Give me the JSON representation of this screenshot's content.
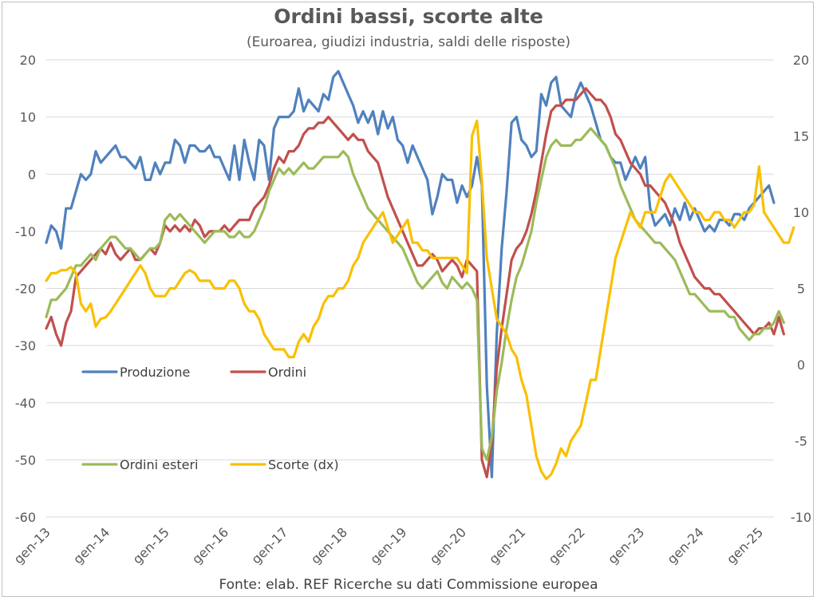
{
  "chart_data": {
    "type": "line",
    "title": "Ordini bassi, scorte alte",
    "subtitle": "(Euroarea, giudizi industria, saldi delle risposte)",
    "source": "Fonte: elab. REF Ricerche su dati Commissione europea",
    "x_tick_labels": [
      "gen-13",
      "gen-14",
      "gen-15",
      "gen-16",
      "gen-17",
      "gen-18",
      "gen-19",
      "gen-20",
      "gen-21",
      "gen-22",
      "gen-23",
      "gen-24",
      "gen-25"
    ],
    "x_start": "2013-01",
    "ylim_left": [
      -60,
      20
    ],
    "y_ticks_left": [
      "20",
      "10",
      "0",
      "-10",
      "-20",
      "-30",
      "-40",
      "-50",
      "-60"
    ],
    "ylim_right": [
      -10,
      20
    ],
    "y_ticks_right": [
      "20",
      "15",
      "10",
      "5",
      "0",
      "-5",
      "-10"
    ],
    "grid": true,
    "legend_position": "inside-left",
    "series": [
      {
        "name": "Produzione",
        "axis": "left",
        "color": "#4f81bd",
        "values": [
          -12,
          -9,
          -10,
          -13,
          -6,
          -6,
          -3,
          0,
          -1,
          0,
          4,
          2,
          3,
          4,
          5,
          3,
          3,
          2,
          1,
          3,
          -1,
          -1,
          2,
          0,
          2,
          2,
          6,
          5,
          2,
          5,
          5,
          4,
          4,
          5,
          3,
          3,
          1,
          -1,
          5,
          -1,
          6,
          2,
          -1,
          6,
          5,
          -1,
          8,
          10,
          10,
          10,
          11,
          15,
          11,
          13,
          12,
          11,
          14,
          13,
          17,
          18,
          16,
          14,
          12,
          9,
          11,
          9,
          11,
          7,
          11,
          8,
          10,
          6,
          5,
          2,
          5,
          3,
          1,
          -1,
          -7,
          -4,
          0,
          -1,
          -1,
          -5,
          -2,
          -4,
          -2,
          3,
          -2,
          -37,
          -53,
          -28,
          -13,
          -3,
          9,
          10,
          6,
          5,
          3,
          4,
          14,
          12,
          16,
          17,
          12,
          11,
          10,
          14,
          16,
          14,
          12,
          9,
          6,
          5,
          3,
          2,
          2,
          -1,
          1,
          3,
          1,
          3,
          -6,
          -9,
          -8,
          -7,
          -9,
          -6,
          -8,
          -5,
          -8,
          -6,
          -8,
          -10,
          -9,
          -10,
          -8,
          -8,
          -9,
          -7,
          -7,
          -8,
          -6,
          -5,
          -4,
          -3,
          -2,
          -5
        ],
        "note": "monthly, Jan 2013 - Jun 2025 (approx.)"
      },
      {
        "name": "Ordini",
        "axis": "left",
        "color": "#c0504d",
        "values": [
          -27,
          -25,
          -28,
          -30,
          -26,
          -24,
          -18,
          -17,
          -16,
          -15,
          -14,
          -13,
          -14,
          -12,
          -14,
          -15,
          -14,
          -13,
          -15,
          -15,
          -14,
          -13,
          -14,
          -12,
          -9,
          -10,
          -9,
          -10,
          -9,
          -10,
          -8,
          -9,
          -11,
          -10,
          -10,
          -10,
          -9,
          -10,
          -9,
          -8,
          -8,
          -8,
          -6,
          -5,
          -4,
          -2,
          1,
          3,
          2,
          4,
          4,
          5,
          7,
          8,
          8,
          9,
          9,
          10,
          9,
          8,
          7,
          6,
          7,
          6,
          6,
          4,
          3,
          2,
          -1,
          -4,
          -6,
          -8,
          -10,
          -12,
          -14,
          -16,
          -16,
          -15,
          -14,
          -15,
          -17,
          -16,
          -15,
          -16,
          -18,
          -15,
          -16,
          -17,
          -50,
          -53,
          -47,
          -34,
          -27,
          -21,
          -15,
          -13,
          -12,
          -10,
          -7,
          -3,
          2,
          7,
          11,
          12,
          12,
          13,
          13,
          13,
          14,
          15,
          14,
          13,
          13,
          12,
          10,
          7,
          6,
          4,
          2,
          1,
          0,
          -2,
          -2,
          -3,
          -4,
          -5,
          -7,
          -9,
          -12,
          -14,
          -16,
          -18,
          -19,
          -20,
          -20,
          -21,
          -21,
          -22,
          -23,
          -24,
          -25,
          -26,
          -27,
          -28,
          -27,
          -27,
          -26,
          -28,
          -25,
          -28
        ],
        "note": "monthly, Jan 2013 - Jun 2025 (approx.)"
      },
      {
        "name": "Ordini esteri",
        "axis": "left",
        "color": "#9bbb59",
        "values": [
          -25,
          -22,
          -22,
          -21,
          -20,
          -18,
          -16,
          -16,
          -15,
          -14,
          -15,
          -13,
          -12,
          -11,
          -11,
          -12,
          -13,
          -13,
          -14,
          -15,
          -14,
          -13,
          -13,
          -12,
          -8,
          -7,
          -8,
          -7,
          -8,
          -9,
          -10,
          -11,
          -12,
          -11,
          -10,
          -10,
          -10,
          -11,
          -11,
          -10,
          -11,
          -11,
          -10,
          -8,
          -6,
          -3,
          -1,
          1,
          0,
          1,
          0,
          1,
          2,
          1,
          1,
          2,
          3,
          3,
          3,
          3,
          4,
          3,
          0,
          -2,
          -4,
          -6,
          -7,
          -8,
          -9,
          -10,
          -11,
          -12,
          -13,
          -15,
          -17,
          -19,
          -20,
          -19,
          -18,
          -17,
          -19,
          -20,
          -18,
          -19,
          -20,
          -19,
          -20,
          -22,
          -48,
          -50,
          -46,
          -38,
          -33,
          -27,
          -22,
          -18,
          -16,
          -13,
          -10,
          -5,
          -1,
          3,
          5,
          6,
          5,
          5,
          5,
          6,
          6,
          7,
          8,
          7,
          6,
          5,
          3,
          1,
          -2,
          -4,
          -6,
          -8,
          -9,
          -10,
          -11,
          -12,
          -12,
          -13,
          -14,
          -15,
          -17,
          -19,
          -21,
          -21,
          -22,
          -23,
          -24,
          -24,
          -24,
          -24,
          -25,
          -25,
          -27,
          -28,
          -29,
          -28,
          -28,
          -27,
          -27,
          -26,
          -24,
          -26
        ],
        "note": "monthly, Jan 2013 - Jun 2025 (approx.)"
      },
      {
        "name": "Scorte (dx)",
        "axis": "right",
        "color": "#f9c000",
        "values": [
          5.5,
          6,
          6,
          6.2,
          6.2,
          6.4,
          6,
          4,
          3.5,
          4,
          2.5,
          3,
          3.1,
          3.5,
          4,
          4.5,
          5,
          5.5,
          6,
          6.5,
          6,
          5,
          4.5,
          4.5,
          4.5,
          5,
          5,
          5.5,
          6,
          6.2,
          6,
          5.5,
          5.5,
          5.5,
          5,
          5,
          5,
          5.5,
          5.5,
          5,
          4,
          3.5,
          3.5,
          3,
          2,
          1.5,
          1,
          1,
          1,
          0.5,
          0.5,
          1.5,
          2,
          1.5,
          2.5,
          3,
          4,
          4.5,
          4.5,
          5,
          5,
          5.5,
          6.5,
          7,
          8,
          8.5,
          9,
          9.5,
          10,
          9,
          8,
          8.5,
          9,
          9.5,
          8,
          8,
          7.5,
          7.5,
          7,
          7,
          7,
          7,
          7,
          7,
          6.5,
          6,
          15,
          16,
          12,
          7,
          5,
          3,
          2.5,
          2,
          1,
          0.5,
          -1,
          -2,
          -4,
          -6,
          -7,
          -7.5,
          -7.2,
          -6.5,
          -5.5,
          -6,
          -5,
          -4.5,
          -4,
          -2.5,
          -1,
          -1,
          1,
          3,
          5,
          7,
          8,
          9,
          10,
          9.5,
          9,
          10,
          10,
          10,
          11,
          12,
          12.5,
          12,
          11.5,
          11,
          10.5,
          10,
          10,
          9.5,
          9.5,
          10,
          10,
          9.5,
          9.5,
          9,
          9.5,
          10,
          10,
          10.5,
          13,
          10,
          9.5,
          9,
          8.5,
          8,
          8,
          9
        ],
        "note": "monthly, Jan 2013 - Jun 2025 (approx.)"
      }
    ],
    "legend_entries": [
      {
        "label": "Produzione",
        "color": "#4f81bd"
      },
      {
        "label": "Ordini",
        "color": "#c0504d"
      },
      {
        "label": "Ordini esteri",
        "color": "#9bbb59"
      },
      {
        "label": "Scorte (dx)",
        "color": "#f9c000"
      }
    ]
  }
}
